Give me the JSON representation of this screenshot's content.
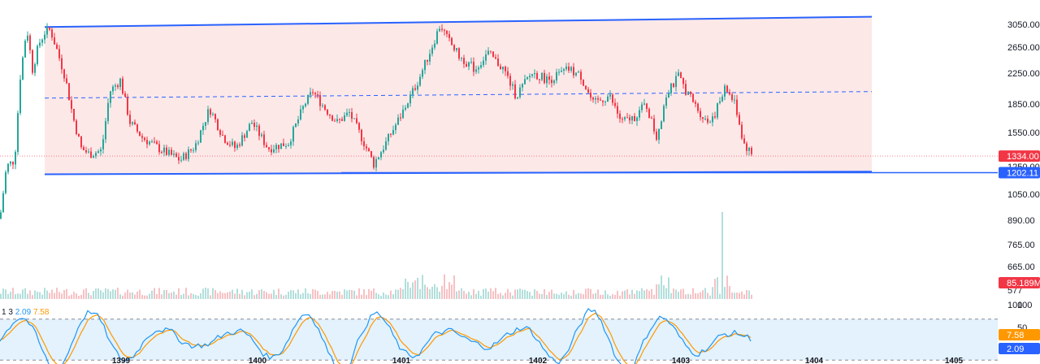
{
  "chart_data": {
    "type": "candlestick",
    "price_axis": {
      "labels": [
        "3050.00",
        "2650.00",
        "2250.00",
        "1850.00",
        "1550.00",
        "1250.00",
        "1050.00",
        "890.00",
        "765.00",
        "665.00",
        "577",
        "100"
      ],
      "scale": "log"
    },
    "price_tags": [
      {
        "label": "1334.00",
        "value": 1334,
        "color": "#f23645"
      },
      {
        "label": "1202.11",
        "value": 1202.11,
        "color": "#2962ff"
      }
    ],
    "volume_tag": {
      "label": "85.189M",
      "color": "#f23645"
    },
    "time_axis": {
      "labels": [
        "1399",
        "1400",
        "1401",
        "1402",
        "1403",
        "1404",
        "1405"
      ]
    },
    "channel": {
      "upper": [
        [
          0,
          3000
        ],
        [
          1,
          3200
        ]
      ],
      "lower": [
        [
          0,
          1190
        ],
        [
          1,
          1210
        ]
      ],
      "mid_dashed": [
        [
          0,
          1920
        ],
        [
          1,
          2000
        ]
      ],
      "fill": "#fde8e8",
      "line_color": "#2962ff"
    },
    "oscillator": {
      "legend_prefix": "1 3",
      "k_value": "2.09",
      "d_value": "7.58",
      "k_color": "#2196f3",
      "d_color": "#ff9800",
      "upper_band": 80,
      "lower_band": 20,
      "tags": [
        {
          "label": "7.58",
          "color": "#ff9800"
        },
        {
          "label": "2.09",
          "color": "#2962ff"
        }
      ],
      "axis_labels": [
        "100",
        "50"
      ]
    },
    "colors": {
      "up": "#26a69a",
      "down": "#f23645",
      "vol_up": "#b2dfdb",
      "vol_down": "#f7c1c4"
    }
  }
}
